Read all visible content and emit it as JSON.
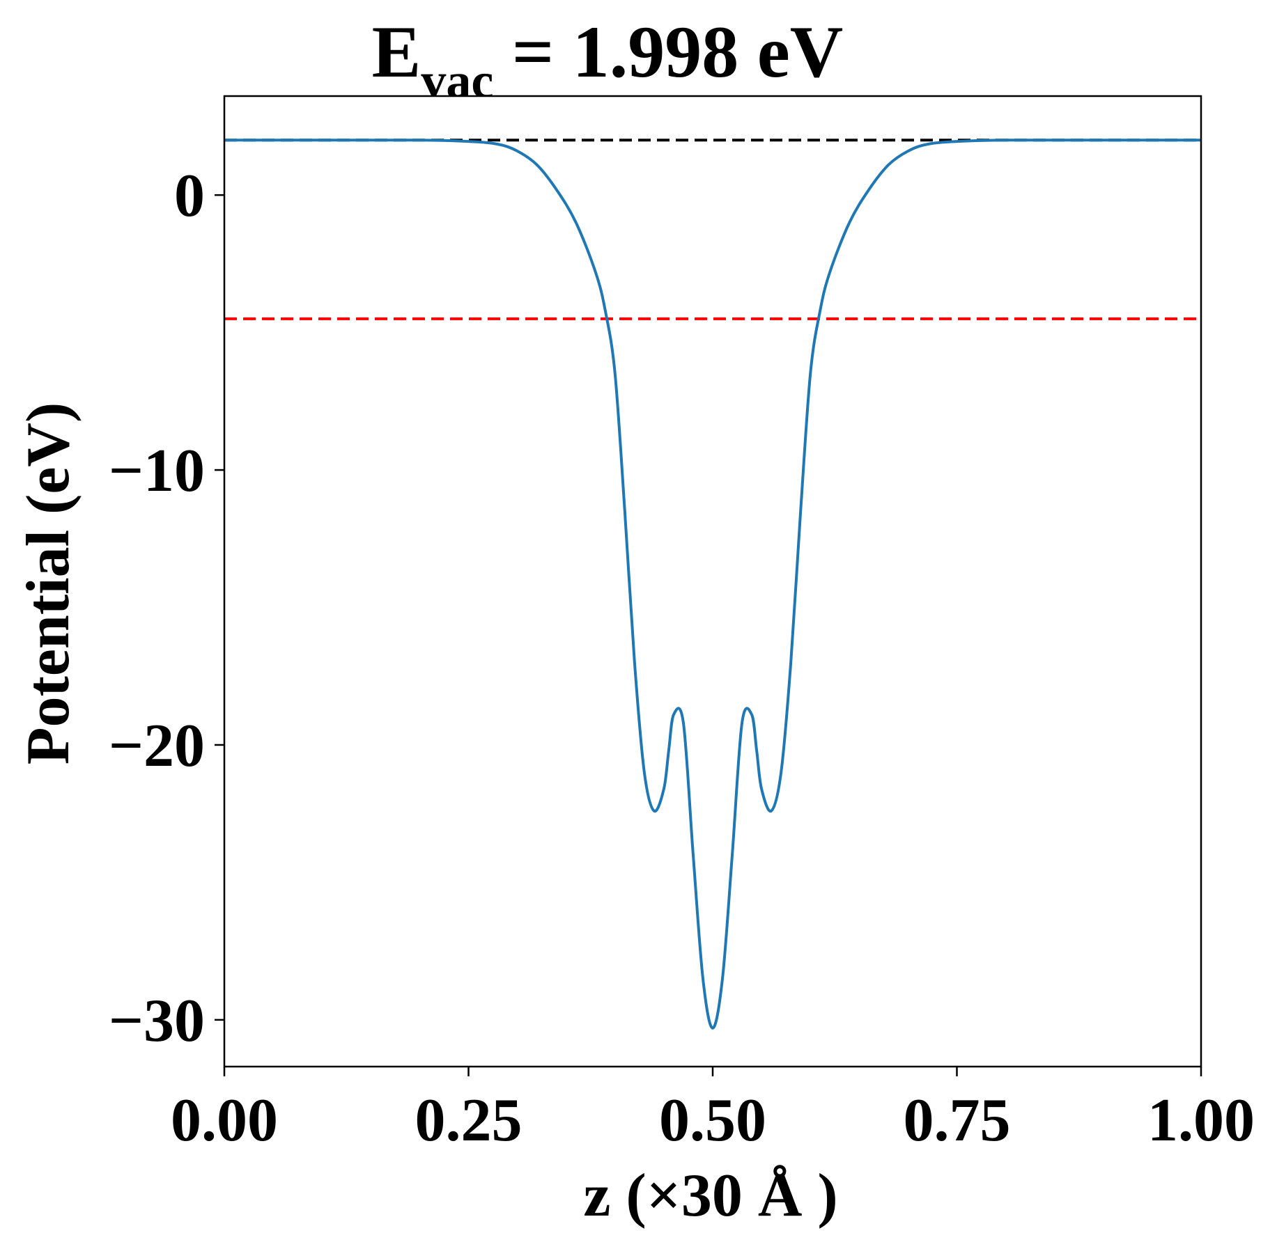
{
  "chart_data": {
    "type": "line",
    "title": {
      "prefix": "E",
      "subscript": "vac",
      "suffix": " = 1.998 eV"
    },
    "xlabel": "z (×30 Å )",
    "ylabel": "Potential (eV)",
    "xlim": [
      0.0,
      1.0
    ],
    "ylim": [
      -31.7,
      3.6
    ],
    "x_ticks": [
      {
        "value": 0.0,
        "label": "0.00"
      },
      {
        "value": 0.25,
        "label": "0.25"
      },
      {
        "value": 0.5,
        "label": "0.50"
      },
      {
        "value": 0.75,
        "label": "0.75"
      },
      {
        "value": 1.0,
        "label": "1.00"
      }
    ],
    "y_ticks": [
      {
        "value": 0,
        "label": "0"
      },
      {
        "value": -10,
        "label": "−10"
      },
      {
        "value": -20,
        "label": "−20"
      },
      {
        "value": -30,
        "label": "−30"
      }
    ],
    "grid": false,
    "reference_lines": [
      {
        "y": 1.998,
        "color": "#000000",
        "style": "dashed"
      },
      {
        "y": -4.5,
        "color": "#ff0000",
        "style": "dashed"
      }
    ],
    "series": [
      {
        "color": "#1f77b4",
        "x": [
          0.0,
          0.1,
          0.2,
          0.25,
          0.28,
          0.3,
          0.32,
          0.34,
          0.36,
          0.38,
          0.39,
          0.4,
          0.41,
          0.42,
          0.43,
          0.44,
          0.45,
          0.455,
          0.46,
          0.47,
          0.48,
          0.49,
          0.5,
          0.51,
          0.52,
          0.53,
          0.54,
          0.545,
          0.55,
          0.56,
          0.57,
          0.58,
          0.59,
          0.6,
          0.61,
          0.62,
          0.64,
          0.66,
          0.68,
          0.7,
          0.72,
          0.75,
          0.8,
          0.9,
          1.0
        ],
        "y": [
          1.998,
          1.998,
          1.998,
          1.95,
          1.85,
          1.6,
          1.1,
          0.2,
          -1.0,
          -2.8,
          -4.2,
          -6.5,
          -11.5,
          -17.0,
          -21.0,
          -22.4,
          -21.6,
          -20.2,
          -18.9,
          -19.2,
          -24.0,
          -28.5,
          -30.3,
          -28.5,
          -24.0,
          -19.2,
          -18.9,
          -20.2,
          -21.6,
          -22.4,
          -21.0,
          -17.0,
          -11.5,
          -6.5,
          -4.2,
          -2.8,
          -1.0,
          0.2,
          1.1,
          1.6,
          1.85,
          1.95,
          1.998,
          1.998,
          1.998
        ]
      }
    ]
  }
}
